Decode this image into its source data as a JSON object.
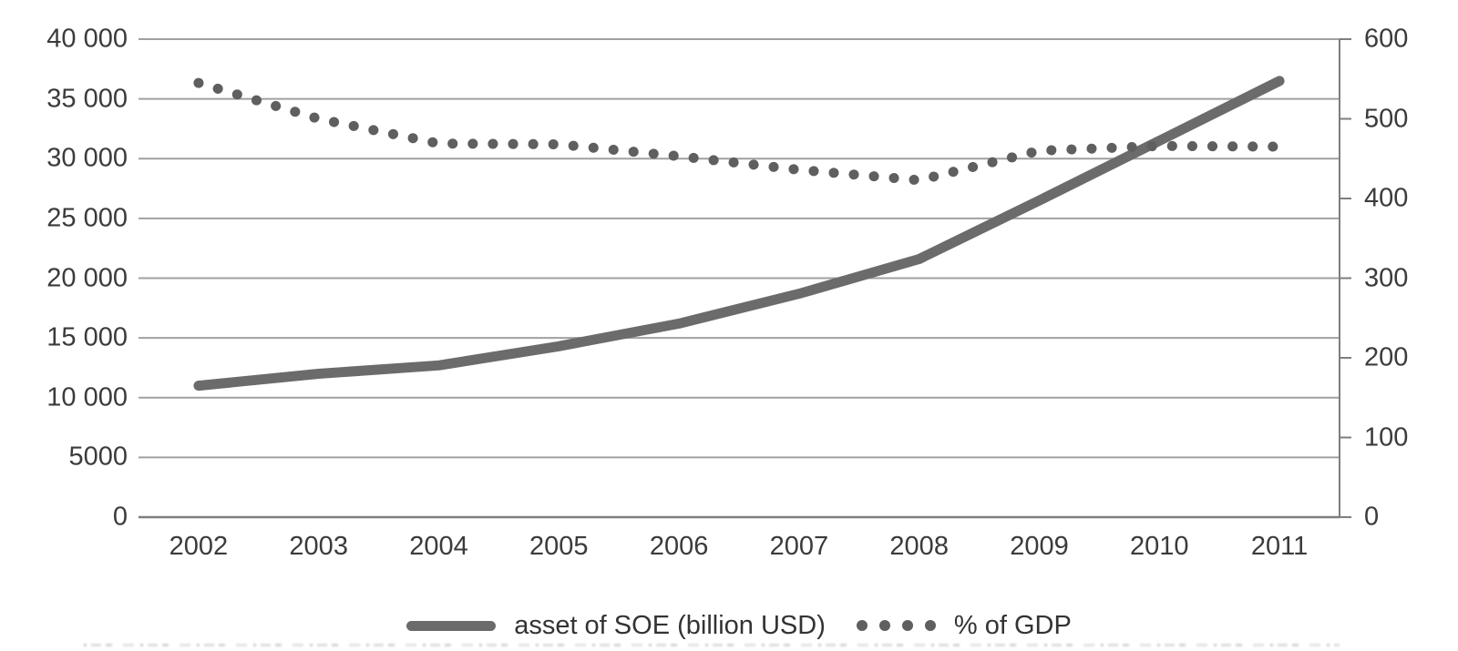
{
  "chart_data": {
    "type": "line",
    "title": "",
    "categories": [
      "2002",
      "2003",
      "2004",
      "2005",
      "2006",
      "2007",
      "2008",
      "2009",
      "2010",
      "2011"
    ],
    "series": [
      {
        "name": "asset of SOE (billion USD)",
        "axis": "left",
        "style": "solid-thick",
        "values": [
          11000,
          12000,
          12700,
          14300,
          16200,
          18700,
          21600,
          26500,
          31500,
          36500
        ]
      },
      {
        "name": "% of GDP",
        "axis": "right",
        "style": "round-dotted",
        "values": [
          545,
          500,
          469,
          468,
          453,
          436,
          423,
          460,
          466,
          465
        ]
      }
    ],
    "left_axis": {
      "min": 0,
      "max": 40000,
      "step": 5000,
      "tick_labels": [
        "40 000",
        "35 000",
        "30 000",
        "25 000",
        "20 000",
        "15 000",
        "10 000",
        "5000",
        "0"
      ]
    },
    "right_axis": {
      "min": 0,
      "max": 600,
      "step": 100,
      "tick_labels": [
        "600",
        "500",
        "400",
        "300",
        "200",
        "100",
        "0"
      ]
    },
    "grid": true,
    "legend_position": "bottom"
  },
  "legend": {
    "items": [
      {
        "label": "asset of SOE (billion USD)",
        "swatch": "thick-line"
      },
      {
        "label": "% of GDP",
        "swatch": "dots"
      }
    ]
  },
  "colors": {
    "solid_line": "#6b6b6b",
    "dotted_line": "#5f5f5f",
    "gridline": "#a0a0a0",
    "axis_line": "#7e7e7e",
    "text": "#3b3b3b",
    "background": "#ffffff"
  }
}
